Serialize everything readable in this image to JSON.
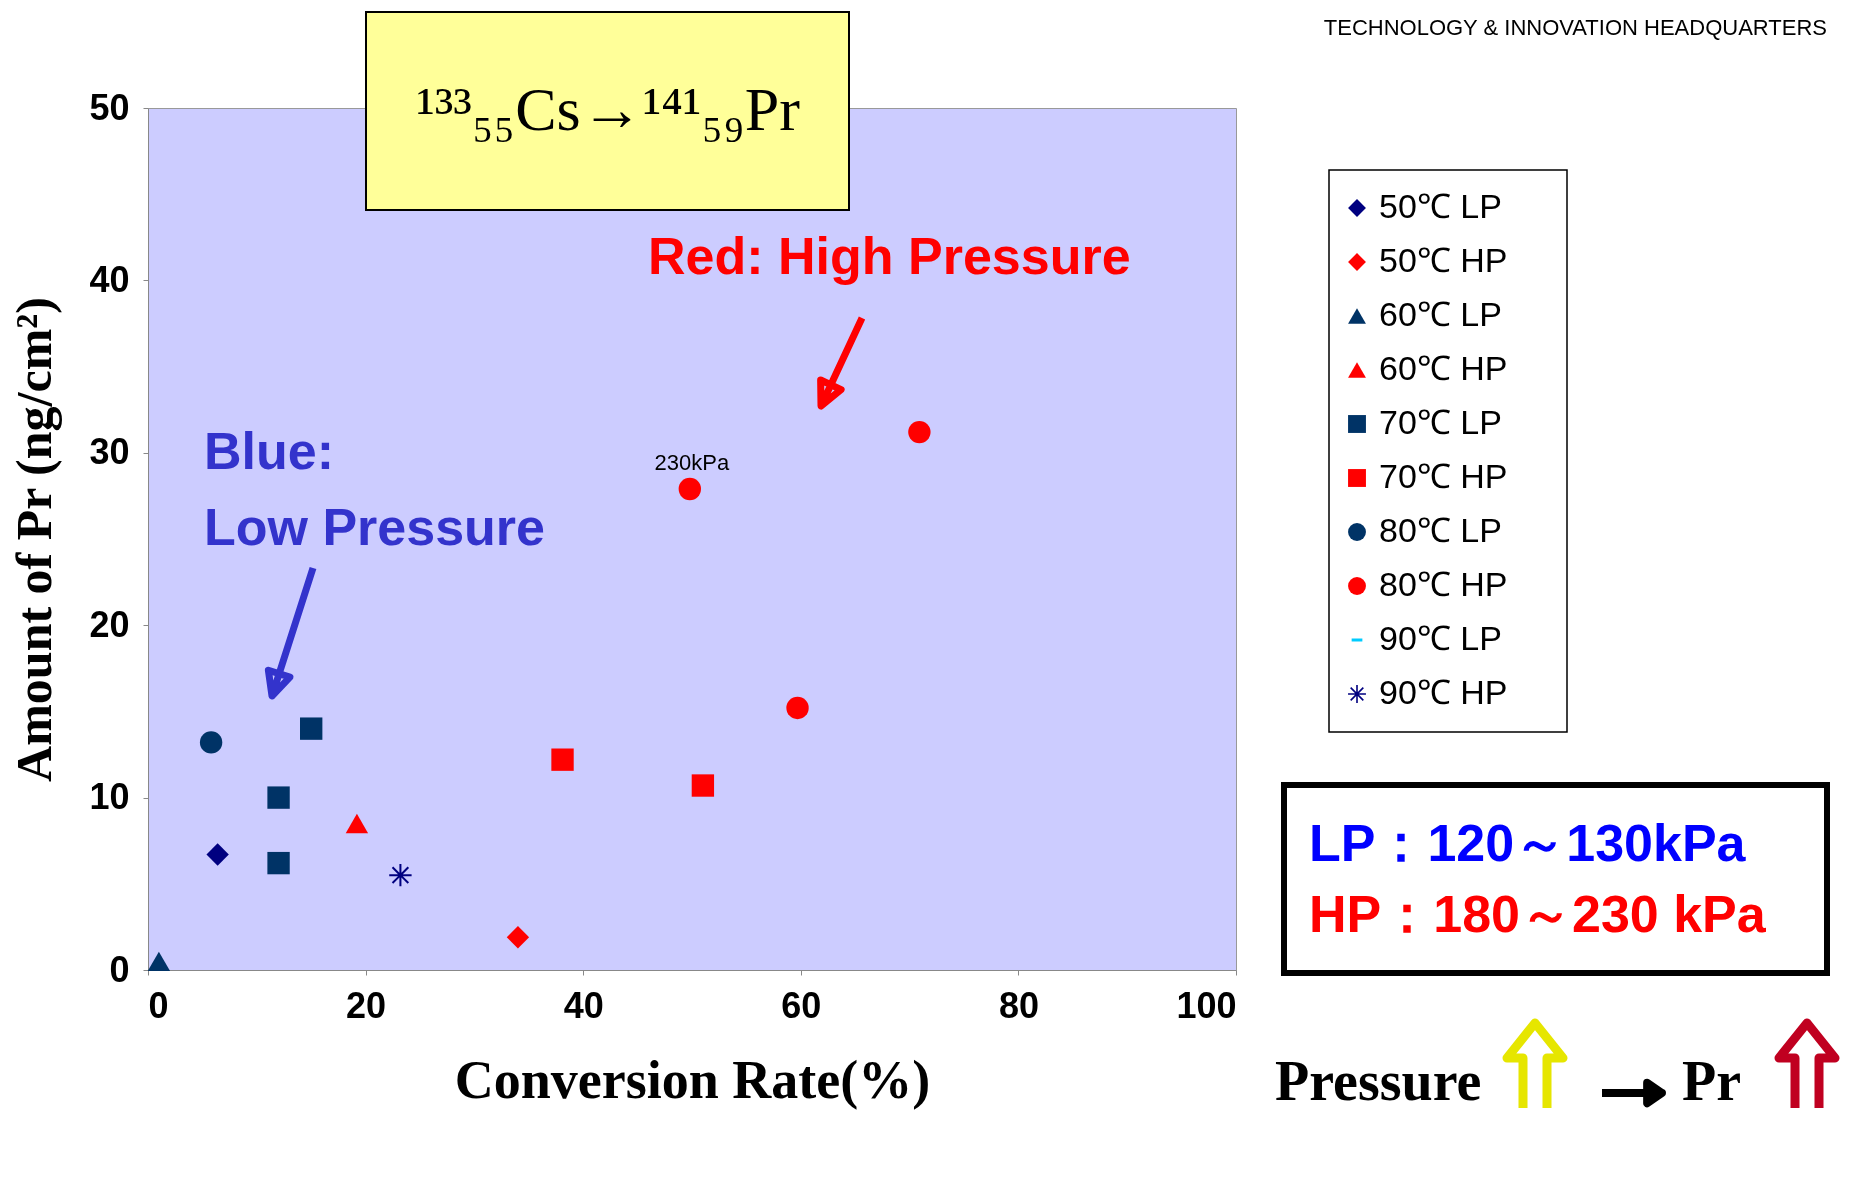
{
  "chart_data": {
    "type": "scatter",
    "title": "¹³³₅₅Cs→¹⁴¹₅₉Pr",
    "xlabel": "Conversion Rate(%)",
    "ylabel": "Amount of Pr (ng/cm²)",
    "xlim": [
      0,
      100
    ],
    "xticks": [
      0,
      20,
      40,
      60,
      80,
      100
    ],
    "ylim": [
      0,
      50
    ],
    "yticks": [
      0,
      10,
      20,
      30,
      40,
      50
    ],
    "grid": false,
    "legend": "right",
    "series": [
      {
        "name": "50℃ LP",
        "color": "#000080",
        "marker": "diamond",
        "x": [
          6.4
        ],
        "values": [
          6.7
        ]
      },
      {
        "name": "50℃ HP",
        "color": "#ff0000",
        "marker": "diamond",
        "x": [
          34.0
        ],
        "values": [
          1.9
        ]
      },
      {
        "name": "60℃ LP",
        "color": "#003366",
        "marker": "triangle",
        "x": [
          1.0
        ],
        "values": [
          0.5
        ]
      },
      {
        "name": "60℃ HP",
        "color": "#ff0000",
        "marker": "triangle",
        "x": [
          19.2
        ],
        "values": [
          8.5
        ]
      },
      {
        "name": "70℃ LP",
        "color": "#003366",
        "marker": "square",
        "x": [
          15.0,
          12.0,
          12.0
        ],
        "values": [
          14.0,
          10.0,
          6.2
        ]
      },
      {
        "name": "70℃ HP",
        "color": "#ff0000",
        "marker": "square",
        "x": [
          38.1,
          51.0
        ],
        "values": [
          12.2,
          10.7
        ]
      },
      {
        "name": "80℃ LP",
        "color": "#003366",
        "marker": "circle",
        "x": [
          5.8
        ],
        "values": [
          13.2
        ]
      },
      {
        "name": "80℃ HP",
        "color": "#ff0000",
        "marker": "circle",
        "x": [
          49.8,
          59.7,
          70.9
        ],
        "values": [
          27.9,
          15.2,
          31.2
        ]
      },
      {
        "name": "90℃ LP",
        "color": "#00ccff"
      },
      {
        "name": "90℃ HP",
        "color": "#000080",
        "marker": "cross",
        "x": [
          23.2
        ],
        "values": [
          5.5
        ]
      }
    ],
    "annotations": [
      "TECHNOLOGY & INNOVATION HEADQUARTERS",
      "Blue:\nLow Pressure",
      "Red: High Pressure",
      {
        "text": "230kPa",
        "x": 49.8,
        "y": 27.9
      },
      "LP：120～130kPa",
      "HP：180～230 kPa",
      "Pressure",
      "Pr"
    ]
  }
}
